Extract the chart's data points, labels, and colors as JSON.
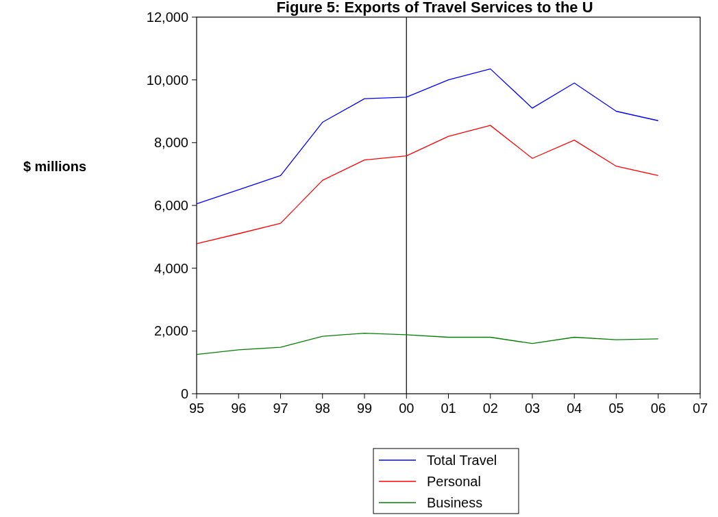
{
  "chart_data": {
    "type": "line",
    "title": "Figure 5: Exports of Travel Services to the U",
    "ylabel": "$ millions",
    "x": [
      1995,
      1996,
      1997,
      1998,
      1999,
      2000,
      2001,
      2002,
      2003,
      2004,
      2005,
      2006
    ],
    "series": [
      {
        "name": "Total Travel",
        "color": "#0000ff",
        "values": [
          6050,
          6500,
          6950,
          8650,
          9400,
          9450,
          10000,
          10350,
          9100,
          9900,
          9000,
          8700
        ]
      },
      {
        "name": "Personal",
        "color": "#ff0000",
        "values": [
          4780,
          5100,
          5430,
          6800,
          7450,
          7580,
          8200,
          8550,
          7500,
          8080,
          7250,
          6950
        ]
      },
      {
        "name": "Business",
        "color": "#008000",
        "values": [
          1250,
          1400,
          1480,
          1830,
          1930,
          1880,
          1800,
          1800,
          1600,
          1800,
          1720,
          1750
        ]
      }
    ],
    "xlim": [
      1995,
      2007
    ],
    "xticks": [
      {
        "value": 1995,
        "label": "95"
      },
      {
        "value": 1996,
        "label": "96"
      },
      {
        "value": 1997,
        "label": "97"
      },
      {
        "value": 1998,
        "label": "98"
      },
      {
        "value": 1999,
        "label": "99"
      },
      {
        "value": 2000,
        "label": "00"
      },
      {
        "value": 2001,
        "label": "01"
      },
      {
        "value": 2002,
        "label": "02"
      },
      {
        "value": 2003,
        "label": "03"
      },
      {
        "value": 2004,
        "label": "04"
      },
      {
        "value": 2005,
        "label": "05"
      },
      {
        "value": 2006,
        "label": "06"
      },
      {
        "value": 2007,
        "label": "07"
      }
    ],
    "ylim": [
      0,
      12000
    ],
    "yticks": [
      {
        "value": 0,
        "label": "0"
      },
      {
        "value": 2000,
        "label": "2,000"
      },
      {
        "value": 4000,
        "label": "4,000"
      },
      {
        "value": 6000,
        "label": "6,000"
      },
      {
        "value": 8000,
        "label": "8,000"
      },
      {
        "value": 10000,
        "label": "10,000"
      },
      {
        "value": 12000,
        "label": "12,000"
      }
    ],
    "ref_lines": [
      {
        "axis": "x",
        "value": 2000,
        "color": "#000000"
      }
    ],
    "legend": "bottom",
    "grid": false,
    "marker": "none",
    "line_style": "solid"
  }
}
